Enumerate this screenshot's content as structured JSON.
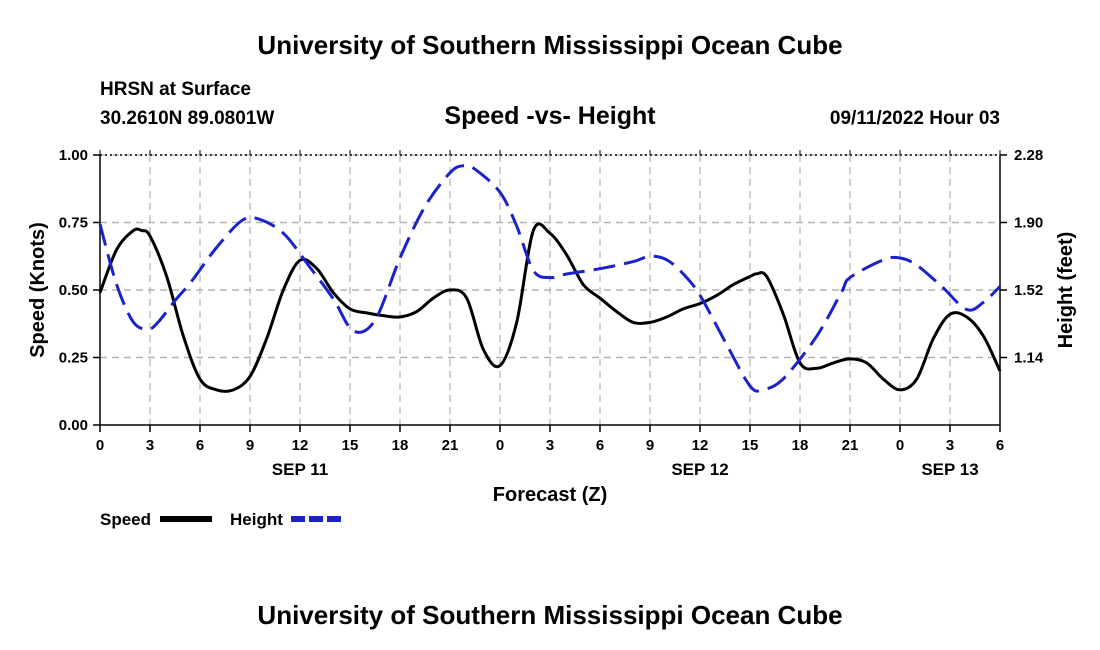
{
  "header": {
    "title_top": "University of Southern Mississippi Ocean Cube",
    "title_bottom": "University of Southern Mississippi Ocean Cube",
    "station": "HRSN at Surface",
    "location": "30.2610N  89.0801W",
    "datetime": "09/11/2022 Hour 03"
  },
  "chart_data": {
    "type": "line",
    "title": "Speed -vs- Height",
    "xlabel": "Forecast (Z)",
    "ylabel": "Speed (Knots)",
    "y2label": "Height (feet)",
    "x_hours": [
      0,
      3,
      6,
      9,
      12,
      15,
      18,
      21,
      24,
      27,
      30,
      33,
      36,
      39,
      42,
      45,
      48,
      51,
      54
    ],
    "x_tick_labels": [
      "0",
      "3",
      "6",
      "9",
      "12",
      "15",
      "18",
      "21",
      "0",
      "3",
      "6",
      "9",
      "12",
      "15",
      "18",
      "21",
      "0",
      "3",
      "6"
    ],
    "date_labels": [
      {
        "hour": 12,
        "label": "SEP 11"
      },
      {
        "hour": 36,
        "label": "SEP 12"
      },
      {
        "hour": 60,
        "label": "SEP 13"
      }
    ],
    "xlim": [
      0,
      54
    ],
    "ylim": [
      0,
      1
    ],
    "y_ticks": [
      "0.00",
      "0.25",
      "0.50",
      "0.75",
      "1.00"
    ],
    "y2lim": [
      0.76,
      2.28
    ],
    "y2_ticks": [
      "1.14",
      "1.52",
      "1.90",
      "2.28"
    ],
    "grid": true,
    "series": [
      {
        "name": "Speed",
        "axis": "left",
        "color": "#000000",
        "dash": "solid",
        "x": [
          0,
          1,
          2,
          2.5,
          3,
          4,
          5,
          6,
          7,
          8,
          9,
          10,
          11,
          12,
          13,
          14,
          15,
          16,
          17,
          18,
          19,
          20,
          21,
          22,
          23,
          24,
          25,
          26,
          27,
          28,
          29,
          30,
          31,
          32,
          33,
          34,
          35,
          36,
          37,
          38,
          39,
          39.4,
          40,
          41,
          42,
          43,
          44,
          45,
          46,
          47,
          48,
          49,
          50,
          51,
          52,
          53,
          54
        ],
        "values": [
          0.49,
          0.65,
          0.72,
          0.72,
          0.7,
          0.55,
          0.33,
          0.17,
          0.13,
          0.13,
          0.18,
          0.32,
          0.5,
          0.61,
          0.58,
          0.49,
          0.43,
          0.415,
          0.405,
          0.4,
          0.42,
          0.47,
          0.5,
          0.47,
          0.28,
          0.22,
          0.38,
          0.72,
          0.71,
          0.63,
          0.52,
          0.47,
          0.42,
          0.38,
          0.38,
          0.4,
          0.43,
          0.45,
          0.48,
          0.52,
          0.55,
          0.56,
          0.55,
          0.41,
          0.23,
          0.21,
          0.23,
          0.245,
          0.23,
          0.17,
          0.13,
          0.17,
          0.32,
          0.41,
          0.4,
          0.33,
          0.2
        ]
      },
      {
        "name": "Height",
        "axis": "right",
        "color": "#1a22cc",
        "dash": "dashed",
        "x": [
          0,
          1,
          2,
          2.9,
          3.5,
          4.5,
          5.5,
          7,
          8.5,
          9.5,
          11,
          12.5,
          14,
          15.2,
          16.5,
          18,
          19.5,
          21,
          21.8,
          22.5,
          24,
          25,
          26,
          27,
          28,
          30,
          32,
          33,
          34,
          35,
          36,
          37.5,
          39,
          39.8,
          41,
          43,
          44.5,
          45,
          47,
          48,
          49,
          50.5,
          52,
          53,
          54
        ],
        "values": [
          1.89,
          1.55,
          1.34,
          1.3,
          1.34,
          1.46,
          1.57,
          1.76,
          1.91,
          1.92,
          1.84,
          1.66,
          1.47,
          1.29,
          1.35,
          1.7,
          1.99,
          2.18,
          2.22,
          2.2,
          2.07,
          1.88,
          1.63,
          1.59,
          1.61,
          1.64,
          1.68,
          1.71,
          1.69,
          1.61,
          1.49,
          1.23,
          0.98,
          0.96,
          1.02,
          1.26,
          1.51,
          1.59,
          1.69,
          1.7,
          1.66,
          1.54,
          1.41,
          1.45,
          1.54
        ]
      }
    ],
    "legend": [
      {
        "label": "Speed",
        "color": "#000000",
        "dash": "solid"
      },
      {
        "label": "Height",
        "color": "#1a22cc",
        "dash": "dashed"
      }
    ]
  }
}
